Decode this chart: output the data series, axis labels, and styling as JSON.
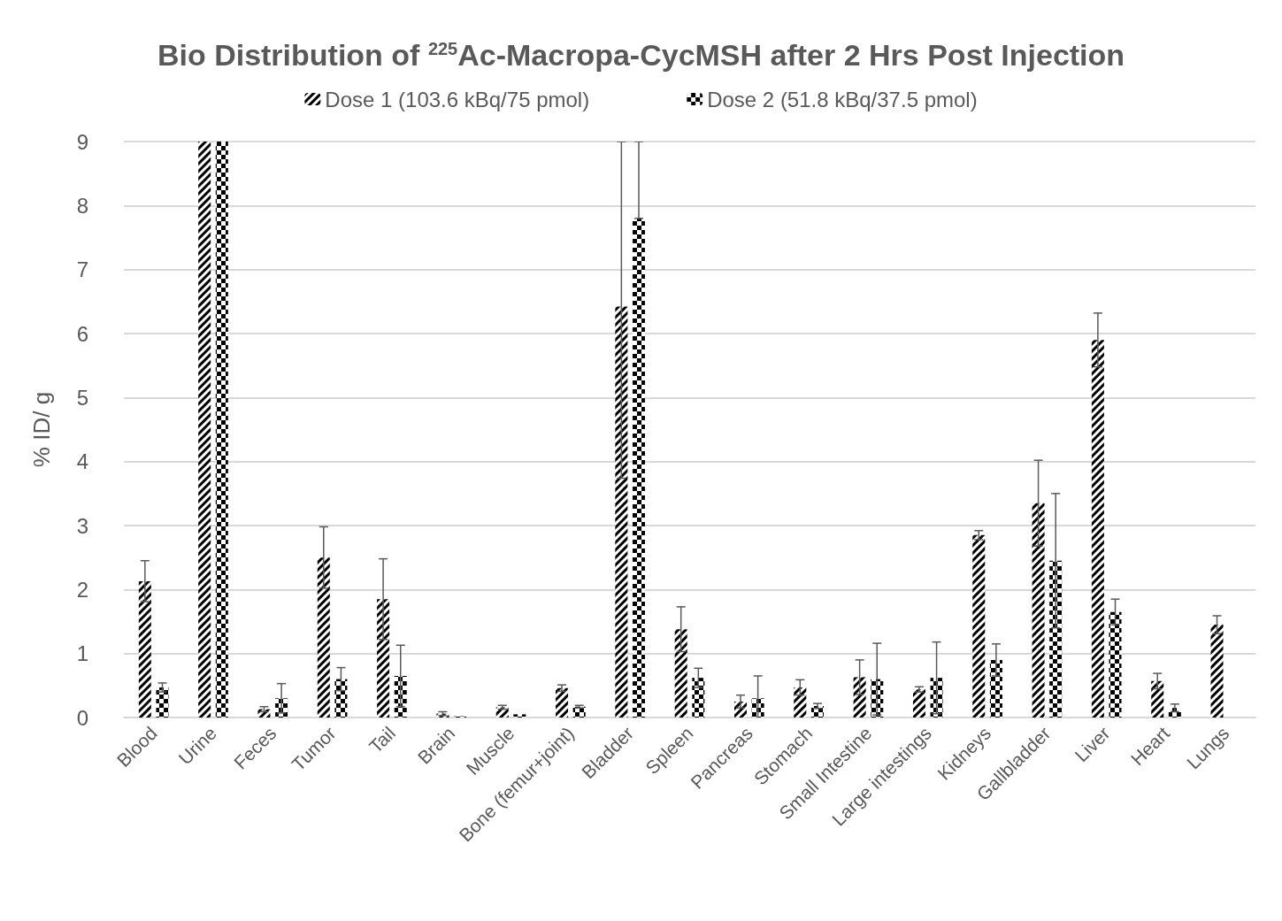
{
  "chart_data": {
    "type": "bar",
    "title": "Bio Distribution of $^{225}$Ac-Macropa-CycMSH after 2 Hrs Post Injection",
    "ylabel": "% ID/ g",
    "categories": [
      "Blood",
      "Urine",
      "Feces",
      "Tumor",
      "Tail",
      "Brain",
      "Muscle",
      "Bone (femur+joint)",
      "Bladder",
      "Spleen",
      "Pancreas",
      "Stomach",
      "Small Intestine",
      "Large intestings",
      "Kidneys",
      "Gallbladder",
      "Liver",
      "Heart",
      "Lungs"
    ],
    "series": [
      {
        "name": "Dose 1 (103.6 kBq/75 pmol)",
        "color": "#000000",
        "values": [
          2.13,
          9,
          0.13,
          2.5,
          1.85,
          0.06,
          0.16,
          0.46,
          6.42,
          1.38,
          0.25,
          0.47,
          0.63,
          0.44,
          2.85,
          3.35,
          5.9,
          0.57,
          1.45
        ],
        "errors": [
          0.32,
          null,
          0.04,
          0.48,
          0.63,
          0.03,
          0.03,
          0.05,
          [
            3.74,
            9
          ],
          0.35,
          0.1,
          0.12,
          0.27,
          0.04,
          0.07,
          0.67,
          0.42,
          0.12,
          0.14
        ]
      },
      {
        "name": "Dose 2 (51.8 kBq/37.5 pmol)",
        "color": "#000000",
        "values": [
          0.47,
          9,
          0.3,
          0.6,
          0.65,
          0.02,
          0.05,
          0.17,
          7.8,
          0.62,
          0.3,
          0.18,
          0.6,
          0.62,
          0.9,
          2.45,
          1.65,
          0.15,
          null
        ],
        "errors": [
          0.07,
          null,
          0.23,
          0.18,
          0.48,
          null,
          null,
          0.02,
          [
            7.8,
            9
          ],
          0.15,
          0.35,
          0.04,
          0.56,
          0.56,
          0.25,
          1.05,
          0.2,
          0.06,
          null
        ]
      }
    ],
    "ylim": [
      0,
      9
    ],
    "yticks": [
      0,
      1,
      2,
      3,
      4,
      5,
      6,
      7,
      8,
      9
    ],
    "grid": "y",
    "legend": "top"
  }
}
